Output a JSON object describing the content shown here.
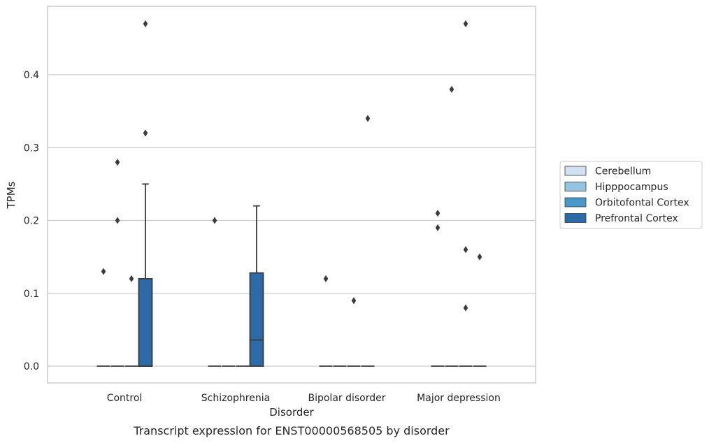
{
  "caption": "Transcript expression for ENST00000568505 by disorder",
  "chart_data": {
    "type": "box",
    "xlabel": "Disorder",
    "ylabel": "TPMs",
    "ylim": [
      -0.023,
      0.494
    ],
    "yticks": [
      0.0,
      0.1,
      0.2,
      0.3,
      0.4
    ],
    "ytick_labels": [
      "0.0",
      "0.1",
      "0.2",
      "0.3",
      "0.4"
    ],
    "grid": "horizontal",
    "legend_position": "right",
    "categories": [
      "Control",
      "Schizophrenia",
      "Bipolar disorder",
      "Major depression"
    ],
    "series": [
      {
        "name": "Cerebellum",
        "color": "#d0e1f2",
        "boxes": [
          {
            "q1": 0,
            "median": 0,
            "q3": 0,
            "whisker_low": 0,
            "whisker_high": 0,
            "outliers": [
              0.13
            ]
          },
          {
            "q1": 0,
            "median": 0,
            "q3": 0,
            "whisker_low": 0,
            "whisker_high": 0,
            "outliers": [
              0.2
            ]
          },
          {
            "q1": 0,
            "median": 0,
            "q3": 0,
            "whisker_low": 0,
            "whisker_high": 0,
            "outliers": [
              0.12
            ]
          },
          {
            "q1": 0,
            "median": 0,
            "q3": 0,
            "whisker_low": 0,
            "whisker_high": 0,
            "outliers": [
              0.21,
              0.19
            ]
          }
        ]
      },
      {
        "name": "Hipppocampus",
        "color": "#94c4df",
        "boxes": [
          {
            "q1": 0,
            "median": 0,
            "q3": 0,
            "whisker_low": 0,
            "whisker_high": 0,
            "outliers": [
              0.28,
              0.2
            ]
          },
          {
            "q1": 0,
            "median": 0,
            "q3": 0,
            "whisker_low": 0,
            "whisker_high": 0,
            "outliers": []
          },
          {
            "q1": 0,
            "median": 0,
            "q3": 0,
            "whisker_low": 0,
            "whisker_high": 0,
            "outliers": []
          },
          {
            "q1": 0,
            "median": 0,
            "q3": 0,
            "whisker_low": 0,
            "whisker_high": 0,
            "outliers": [
              0.38
            ]
          }
        ]
      },
      {
        "name": "Orbitofontal Cortex",
        "color": "#4a98c9",
        "boxes": [
          {
            "q1": 0,
            "median": 0,
            "q3": 0,
            "whisker_low": 0,
            "whisker_high": 0,
            "outliers": [
              0.12
            ]
          },
          {
            "q1": 0,
            "median": 0,
            "q3": 0,
            "whisker_low": 0,
            "whisker_high": 0,
            "outliers": []
          },
          {
            "q1": 0,
            "median": 0,
            "q3": 0,
            "whisker_low": 0,
            "whisker_high": 0,
            "outliers": [
              0.09
            ]
          },
          {
            "q1": 0,
            "median": 0,
            "q3": 0,
            "whisker_low": 0,
            "whisker_high": 0,
            "outliers": [
              0.47,
              0.16,
              0.08
            ]
          }
        ]
      },
      {
        "name": "Prefrontal Cortex",
        "color": "#2c6aa8",
        "boxes": [
          {
            "q1": 0,
            "median": 0,
            "q3": 0.12,
            "whisker_low": 0,
            "whisker_high": 0.25,
            "outliers": [
              0.47,
              0.32
            ]
          },
          {
            "q1": 0,
            "median": 0.036,
            "q3": 0.128,
            "whisker_low": 0,
            "whisker_high": 0.22,
            "outliers": []
          },
          {
            "q1": 0,
            "median": 0,
            "q3": 0,
            "whisker_low": 0,
            "whisker_high": 0,
            "outliers": [
              0.34
            ]
          },
          {
            "q1": 0,
            "median": 0,
            "q3": 0,
            "whisker_low": 0,
            "whisker_high": 0,
            "outliers": [
              0.15
            ]
          }
        ]
      }
    ]
  }
}
